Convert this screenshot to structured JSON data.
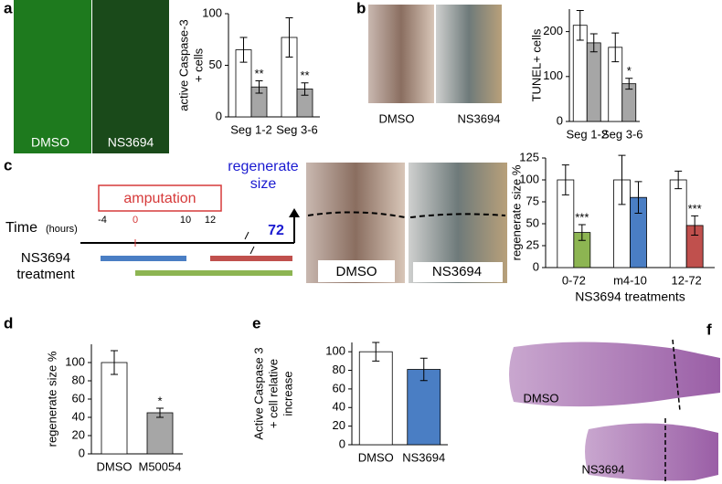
{
  "chart_data": [
    {
      "type": "bar",
      "ylabel": [
        "active Caspase-3",
        "+ cells"
      ],
      "categories": [
        "Seg 1-2",
        "Seg 3-6"
      ],
      "series": [
        {
          "color": "#ffffff",
          "values": [
            65,
            77
          ],
          "errors": [
            12,
            19
          ]
        },
        {
          "color": "#a6a6a6",
          "values": [
            29,
            27
          ],
          "errors": [
            6,
            6
          ],
          "significance": [
            "**",
            "**"
          ]
        }
      ],
      "ylim": [
        0,
        100
      ],
      "yticks": [
        0,
        50,
        100
      ]
    },
    {
      "type": "bar",
      "ylabel": [
        "TUNEL+ cells"
      ],
      "categories": [
        "Seg 1-2",
        "Seg 3-6"
      ],
      "series": [
        {
          "color": "#ffffff",
          "values": [
            214,
            165
          ],
          "errors": [
            33,
            32
          ]
        },
        {
          "color": "#a6a6a6",
          "values": [
            175,
            84
          ],
          "errors": [
            20,
            12
          ],
          "significance": [
            null,
            "*"
          ]
        }
      ],
      "ylim": [
        0,
        250
      ],
      "yticks": [
        0,
        100,
        200
      ]
    },
    {
      "type": "bar",
      "ylabel": [
        "regenerate size %"
      ],
      "xlabel": "NS3694 treatments",
      "categories": [
        "0-72",
        "m4-10",
        "12-72"
      ],
      "series": [
        {
          "color": "#ffffff",
          "values": [
            100,
            100,
            100
          ],
          "errors": [
            17,
            28,
            10
          ]
        },
        {
          "colors": [
            "#8db552",
            "#4a7ec4",
            "#c0504d"
          ],
          "values": [
            40,
            80,
            48
          ],
          "errors": [
            9,
            18,
            11
          ],
          "significance": [
            "***",
            null,
            "***"
          ]
        }
      ],
      "ylim": [
        0,
        125
      ],
      "yticks": [
        0,
        25,
        50,
        75,
        100,
        125
      ]
    },
    {
      "type": "bar",
      "ylabel": [
        "regenerate size %"
      ],
      "categories": [
        "DMSO",
        "M50054"
      ],
      "series": [
        {
          "colors": [
            "#ffffff",
            "#a6a6a6"
          ],
          "values": [
            100,
            45
          ],
          "errors": [
            13,
            5
          ],
          "significance": [
            null,
            "*"
          ]
        }
      ],
      "ylim": [
        0,
        120
      ],
      "yticks": [
        0,
        20,
        40,
        60,
        80,
        100
      ]
    },
    {
      "type": "bar",
      "ylabel": [
        "Active Caspase 3",
        "+ cell relative",
        "increase"
      ],
      "categories": [
        "DMSO",
        "NS3694"
      ],
      "series": [
        {
          "colors": [
            "#ffffff",
            "#4a7ec4"
          ],
          "values": [
            100,
            81
          ],
          "errors": [
            10,
            12
          ]
        }
      ],
      "ylim": [
        0,
        110
      ],
      "yticks": [
        0,
        20,
        40,
        60,
        80,
        100
      ]
    }
  ],
  "panels": {
    "a": {
      "letter": "a",
      "images": [
        "DMSO",
        "NS3694"
      ]
    },
    "b": {
      "letter": "b",
      "images": [
        "DMSO",
        "NS3694"
      ]
    },
    "c": {
      "letter": "c",
      "amputation": "amputation",
      "regenerate": [
        "regenerate",
        "size"
      ],
      "time": "Time",
      "hours": "(hours)",
      "hour_labels": [
        "-4",
        "0",
        "10",
        "12",
        "72"
      ],
      "treatment": [
        "NS3694",
        "treatment"
      ],
      "images": [
        "DMSO",
        "NS3694"
      ]
    },
    "d": {
      "letter": "d"
    },
    "e": {
      "letter": "e"
    },
    "f": {
      "letter": "f",
      "images": [
        "DMSO",
        "NS3694"
      ]
    }
  }
}
